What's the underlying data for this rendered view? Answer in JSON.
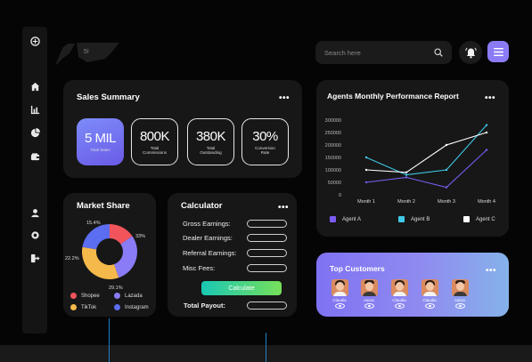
{
  "search": {
    "placeholder": "Search here"
  },
  "brand": {
    "text": "5!"
  },
  "sidebar": {
    "items": [
      {
        "name": "logo-icon"
      },
      {
        "name": "home-icon"
      },
      {
        "name": "bar-chart-icon"
      },
      {
        "name": "pie-chart-icon"
      },
      {
        "name": "wallet-icon"
      },
      {
        "name": "user-icon"
      },
      {
        "name": "gear-icon"
      },
      {
        "name": "logout-icon"
      }
    ]
  },
  "sales_summary": {
    "title": "Sales Summary",
    "stats": [
      {
        "value": "5 MIL",
        "label_lines": [
          "Total Sales"
        ]
      },
      {
        "value": "800K",
        "label_lines": [
          "Total",
          "Commissions"
        ]
      },
      {
        "value": "380K",
        "label_lines": [
          "Total",
          "Outstanding"
        ]
      },
      {
        "value": "30%",
        "label_lines": [
          "Conversion",
          "Rate"
        ]
      }
    ]
  },
  "market_share": {
    "title": "Market Share",
    "legend": [
      {
        "label": "Shopee",
        "color": "#f2545b"
      },
      {
        "label": "Lazada",
        "color": "#8a7cf6"
      },
      {
        "label": "TikTok",
        "color": "#f5b84a"
      },
      {
        "label": "Instagram",
        "color": "#5b6df0"
      }
    ],
    "percent_labels": [
      "15.4%",
      "33%",
      "22.2%",
      "29.1%"
    ]
  },
  "calculator": {
    "title": "Calculator",
    "rows": [
      "Gross Earnings:",
      "Dealer Earnings:",
      "Referral Earnings:",
      "Misc Fees:"
    ],
    "button": "Calculate",
    "total_label": "Total Payout:"
  },
  "agents_report": {
    "title": "Agents Monthly Performance Report",
    "legend": [
      "Agent A",
      "Agent B",
      "Agent C"
    ]
  },
  "top_customers": {
    "title": "Top Customers",
    "customers": [
      "Claudia",
      "Aaron",
      "Claudia",
      "Claudia",
      "Aaron"
    ]
  },
  "colors": {
    "accent": "#8b7cf6",
    "agent_a": "#7b5cf0",
    "agent_b": "#3fc9e8",
    "agent_c": "#ffffff"
  },
  "chart_data": {
    "type": "line",
    "title": "Agents Monthly Performance Report",
    "categories": [
      "Month 1",
      "Month 2",
      "Month 3",
      "Month 4"
    ],
    "y_ticks": [
      "300000",
      "250000",
      "200000",
      "150000",
      "100000",
      "50000",
      "0"
    ],
    "ylim": [
      0,
      300000
    ],
    "series": [
      {
        "name": "Agent A",
        "color": "#7b5cf0",
        "values": [
          50000,
          70000,
          30000,
          180000
        ]
      },
      {
        "name": "Agent B",
        "color": "#3fc9e8",
        "values": [
          150000,
          80000,
          100000,
          280000
        ]
      },
      {
        "name": "Agent C",
        "color": "#ffffff",
        "values": [
          100000,
          90000,
          200000,
          250000
        ]
      }
    ],
    "legend_position": "bottom"
  },
  "pie_chart_data": {
    "type": "pie",
    "categories": [
      "Shopee",
      "Lazada",
      "TikTok",
      "Instagram"
    ],
    "values": [
      15.4,
      29.1,
      33,
      22.2
    ],
    "colors": [
      "#f2545b",
      "#8a7cf6",
      "#f5b84a",
      "#5b6df0"
    ]
  }
}
